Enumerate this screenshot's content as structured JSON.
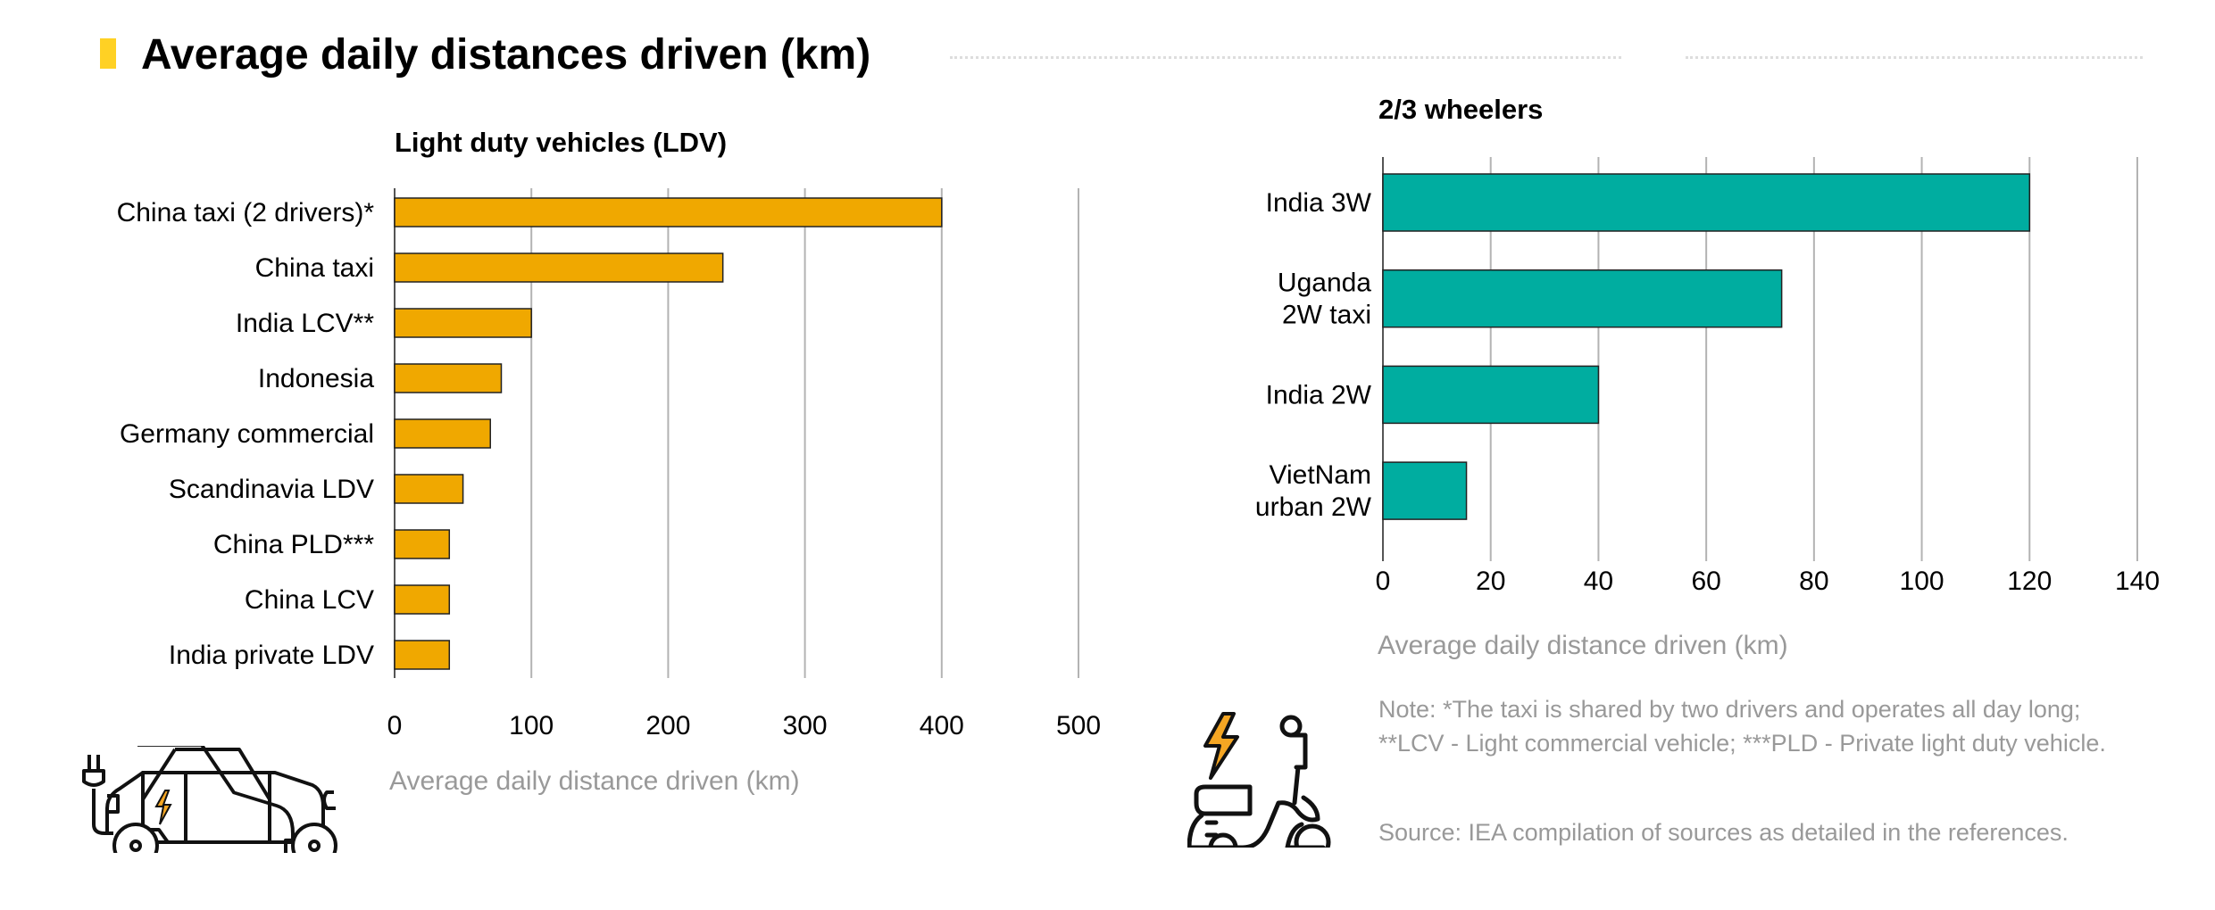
{
  "title": "Average daily distances driven (km)",
  "colors": {
    "title_mark": "#ffd124",
    "ldv_bar": "#f0a800",
    "wheeler_bar": "#00ada0",
    "grid": "#b3b3b3",
    "muted_text": "#999999"
  },
  "icons": {
    "car": "electric-car-icon",
    "scooter": "electric-scooter-icon"
  },
  "notes": {
    "note": "Note: *The taxi is shared by two drivers and operates all day long; **LCV - Light commercial vehicle; ***PLD - Private light duty vehicle.",
    "source": "Source: IEA compilation of sources as detailed in the references."
  },
  "chart_data": [
    {
      "type": "bar",
      "orientation": "horizontal",
      "title": "Light duty vehicles (LDV)",
      "categories": [
        "China taxi (2 drivers)*",
        "China taxi",
        "India LCV**",
        "Indonesia",
        "Germany commercial",
        "Scandinavia LDV",
        "China PLD***",
        "China LCV",
        "India private LDV"
      ],
      "values": [
        400,
        240,
        100,
        78,
        70,
        50,
        40,
        40,
        40
      ],
      "xlabel": "Average daily distance driven (km)",
      "xlim": [
        0,
        500
      ],
      "xticks": [
        "0",
        "100",
        "200",
        "300",
        "400",
        "500"
      ],
      "grid": true,
      "color": "#f0a800"
    },
    {
      "type": "bar",
      "orientation": "horizontal",
      "title": "2/3 wheelers",
      "categories": [
        [
          "India 3W"
        ],
        [
          "Uganda",
          "2W taxi"
        ],
        [
          "India 2W"
        ],
        [
          "VietNam",
          "urban 2W"
        ]
      ],
      "values": [
        120,
        74,
        40,
        15.5
      ],
      "xlabel": "Average daily distance driven (km)",
      "xlim": [
        0,
        140
      ],
      "xticks": [
        "0",
        "20",
        "40",
        "60",
        "80",
        "100",
        "120",
        "140"
      ],
      "grid": true,
      "color": "#00ada0"
    }
  ]
}
